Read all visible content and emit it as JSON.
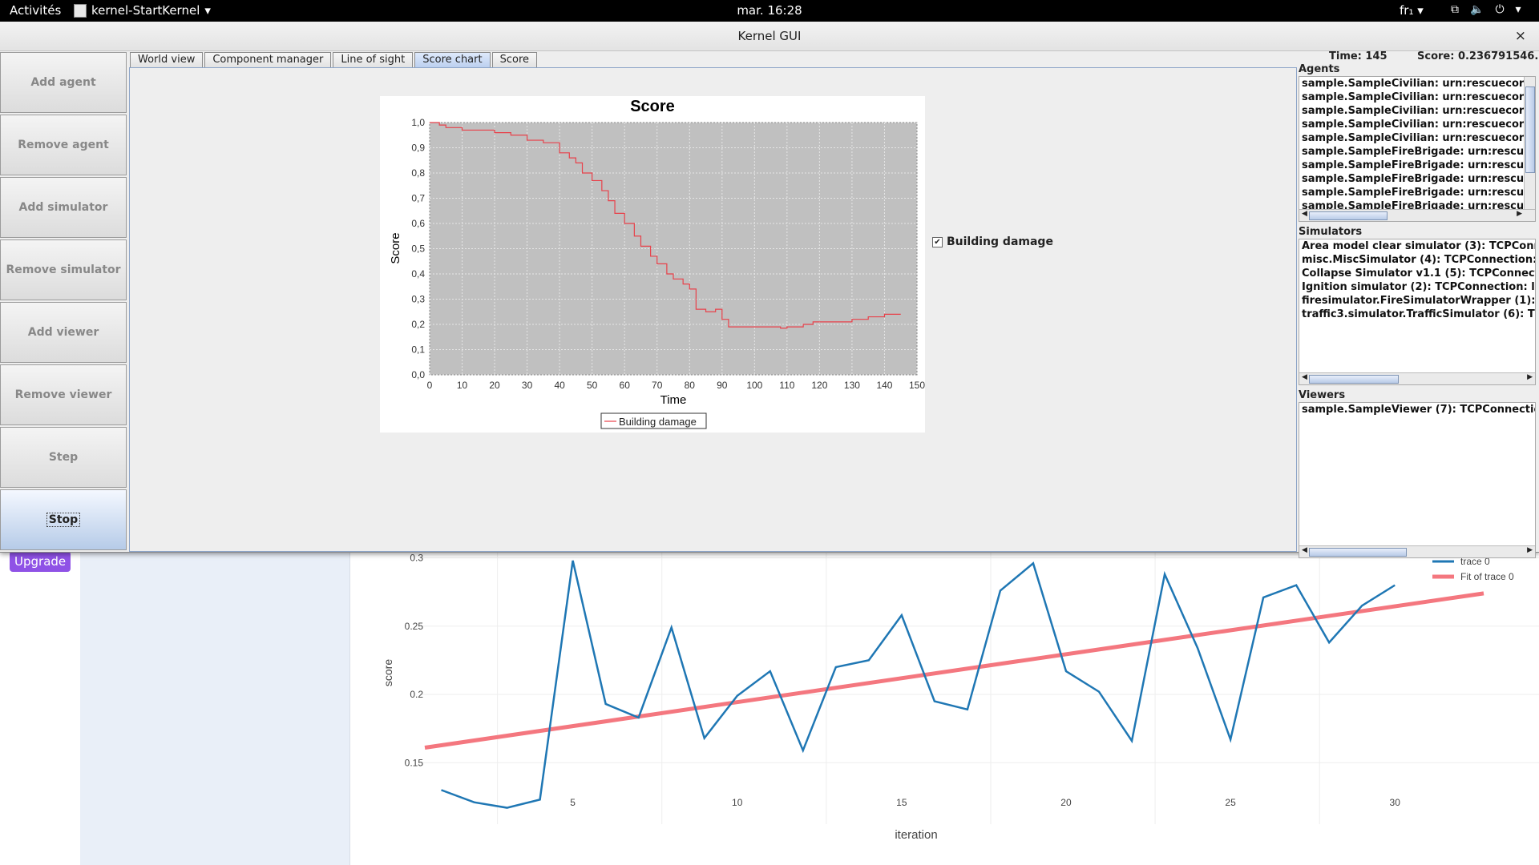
{
  "topbar": {
    "activities": "Activités",
    "app_name": "kernel-StartKernel",
    "clock": "mar. 16:28",
    "lang": "fr₁"
  },
  "window": {
    "title": "Kernel GUI",
    "close": "×",
    "buttons": [
      {
        "label": "Add agent"
      },
      {
        "label": "Remove agent"
      },
      {
        "label": "Add simulator"
      },
      {
        "label": "Remove simulator"
      },
      {
        "label": "Add viewer"
      },
      {
        "label": "Remove viewer"
      },
      {
        "label": "Step"
      },
      {
        "label": "Stop"
      }
    ],
    "tabs": [
      "World view",
      "Component manager",
      "Line of sight",
      "Score chart",
      "Score"
    ],
    "selected_tab": "Score chart",
    "status": {
      "time": "Time: 145",
      "score": "Score: 0.236791546..."
    },
    "agents": {
      "title": "Agents",
      "items": [
        "sample.SampleCivilian: urn:rescuecore",
        "sample.SampleCivilian: urn:rescuecore",
        "sample.SampleCivilian: urn:rescuecore",
        "sample.SampleCivilian: urn:rescuecore",
        "sample.SampleCivilian: urn:rescuecore",
        "sample.SampleFireBrigade: urn:rescue",
        "sample.SampleFireBrigade: urn:rescue",
        "sample.SampleFireBrigade: urn:rescue",
        "sample.SampleFireBrigade: urn:rescue",
        "sample.SampleFireBrigade: urn:rescue"
      ]
    },
    "simulators": {
      "title": "Simulators",
      "items": [
        "Area model clear simulator (3): TCPConne",
        "misc.MiscSimulator (4): TCPConnection: lo",
        "Collapse Simulator v1.1 (5): TCPConnectio",
        "Ignition simulator (2): TCPConnection: loc",
        "firesimulator.FireSimulatorWrapper (1): T",
        "traffic3.simulator.TrafficSimulator (6): TC"
      ]
    },
    "viewers": {
      "title": "Viewers",
      "items": [
        "sample.SampleViewer (7): TCPConnection"
      ]
    },
    "legend_checkbox": {
      "label": "Building damage",
      "checked": true
    }
  },
  "background_app": {
    "upgrade_label": "Upgrade"
  },
  "chart_data": [
    {
      "type": "line",
      "title": "Score",
      "xlabel": "Time",
      "ylabel": "Score",
      "xlim": [
        0,
        150
      ],
      "ylim": [
        0,
        1.0
      ],
      "xticks": [
        "0",
        "10",
        "20",
        "30",
        "40",
        "50",
        "60",
        "70",
        "80",
        "90",
        "100",
        "110",
        "120",
        "130",
        "140",
        "150"
      ],
      "yticks": [
        "0,0",
        "0,1",
        "0,2",
        "0,3",
        "0,4",
        "0,5",
        "0,6",
        "0,7",
        "0,8",
        "0,9",
        "1,0"
      ],
      "grid": true,
      "legend": "bottom",
      "series": [
        {
          "name": "Building damage",
          "color": "#e8414a",
          "x": [
            0,
            3,
            5,
            10,
            15,
            20,
            25,
            30,
            35,
            40,
            43,
            45,
            47,
            50,
            53,
            55,
            57,
            60,
            63,
            65,
            68,
            70,
            73,
            75,
            78,
            80,
            82,
            85,
            88,
            90,
            92,
            95,
            100,
            105,
            108,
            110,
            113,
            115,
            118,
            120,
            125,
            128,
            130,
            133,
            135,
            138,
            140,
            145
          ],
          "y": [
            1.0,
            0.99,
            0.98,
            0.97,
            0.97,
            0.96,
            0.95,
            0.93,
            0.92,
            0.88,
            0.86,
            0.84,
            0.8,
            0.77,
            0.73,
            0.69,
            0.64,
            0.6,
            0.55,
            0.51,
            0.47,
            0.44,
            0.4,
            0.38,
            0.36,
            0.34,
            0.26,
            0.25,
            0.26,
            0.22,
            0.19,
            0.19,
            0.19,
            0.19,
            0.185,
            0.19,
            0.19,
            0.2,
            0.21,
            0.21,
            0.21,
            0.21,
            0.22,
            0.22,
            0.23,
            0.23,
            0.24,
            0.24
          ]
        }
      ]
    },
    {
      "type": "line",
      "title": "",
      "xlabel": "iteration",
      "ylabel": "score",
      "xticks": [
        "5",
        "10",
        "15",
        "20",
        "25",
        "30"
      ],
      "yticks": [
        "0.15",
        "0.2",
        "0.25",
        "0.3"
      ],
      "xlim": [
        0.5,
        32.7
      ],
      "ylim": [
        0.105,
        0.305
      ],
      "grid": true,
      "legend": "top-right",
      "series": [
        {
          "name": "trace 0",
          "color": "#1f77b4",
          "x": [
            1,
            2,
            3,
            4,
            5,
            6,
            7,
            8,
            9,
            10,
            11,
            12,
            13,
            14,
            15,
            16,
            17,
            18,
            19,
            20,
            21,
            22,
            23,
            24,
            25,
            26,
            27,
            28,
            29,
            30
          ],
          "y": [
            0.13,
            0.121,
            0.117,
            0.123,
            0.298,
            0.193,
            0.183,
            0.249,
            0.168,
            0.199,
            0.217,
            0.159,
            0.22,
            0.225,
            0.258,
            0.195,
            0.189,
            0.276,
            0.296,
            0.217,
            0.202,
            0.166,
            0.288,
            0.234,
            0.167,
            0.271,
            0.28,
            0.238,
            0.265,
            0.28
          ]
        },
        {
          "name": "Fit of trace 0",
          "color": "#f4777f",
          "x": [
            0.5,
            32.7
          ],
          "y": [
            0.161,
            0.274
          ]
        }
      ]
    }
  ]
}
